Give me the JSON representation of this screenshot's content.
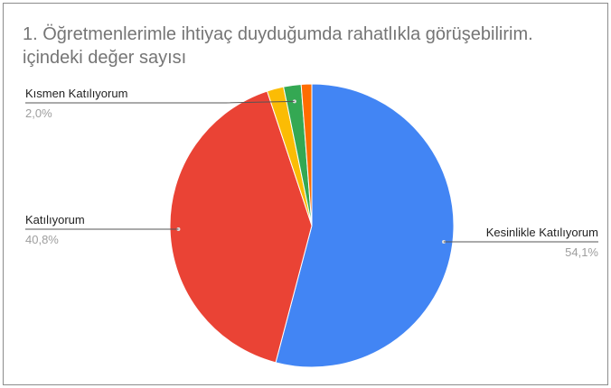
{
  "chart_data": {
    "type": "pie",
    "title_line1": "1. Öğretmenlerimle ihtiyaç duyduğumda rahatlıkla görüşebilirim.",
    "title_line2": "içindeki değer sayısı",
    "slices": [
      {
        "label": "Kesinlikle Katılıyorum",
        "value": 54.1,
        "display": "54,1%",
        "color": "#4285f4",
        "labeled": true,
        "side": "right"
      },
      {
        "label": "Katılıyorum",
        "value": 40.8,
        "display": "40,8%",
        "color": "#ea4335",
        "labeled": true,
        "side": "left"
      },
      {
        "label": "",
        "value": 1.9,
        "display": "",
        "color": "#fbbc04",
        "labeled": false
      },
      {
        "label": "Kısmen Katılıyorum",
        "value": 2.0,
        "display": "2,0%",
        "color": "#34a853",
        "labeled": true,
        "side": "left-top"
      },
      {
        "label": "",
        "value": 1.2,
        "display": "",
        "color": "#ff6d01",
        "labeled": false
      }
    ]
  }
}
